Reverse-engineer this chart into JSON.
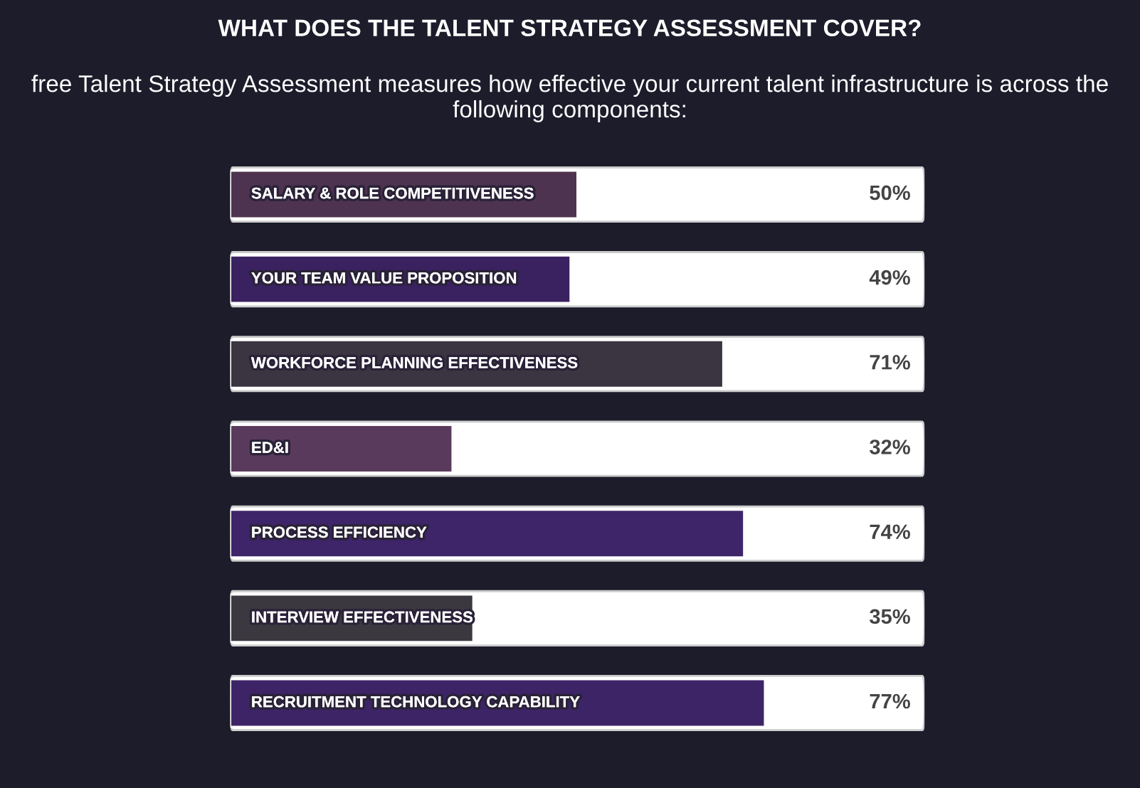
{
  "chart_data": {
    "type": "bar",
    "orientation": "horizontal",
    "title": "WHAT DOES THE TALENT STRATEGY ASSESSMENT COVER?",
    "subtitle": "free Talent Strategy Assessment measures how effective your current talent infrastructure is across the following components:",
    "categories": [
      "SALARY & ROLE COMPETITIVENESS",
      "YOUR TEAM VALUE PROPOSITION",
      "WORKFORCE PLANNING EFFECTIVENESS",
      "ED&I",
      "PROCESS EFFICIENCY",
      "INTERVIEW EFFECTIVENESS",
      "RECRUITMENT TECHNOLOGY CAPABILITY"
    ],
    "values": [
      50,
      49,
      71,
      32,
      74,
      35,
      77
    ],
    "colors": [
      "#4e3350",
      "#3a2160",
      "#3a3540",
      "#5a3a5c",
      "#3e2468",
      "#3b383f",
      "#3d2466"
    ],
    "value_labels": [
      "50%",
      "49%",
      "71%",
      "32%",
      "74%",
      "35%",
      "77%"
    ],
    "xlim": [
      0,
      100
    ],
    "legend": false
  }
}
